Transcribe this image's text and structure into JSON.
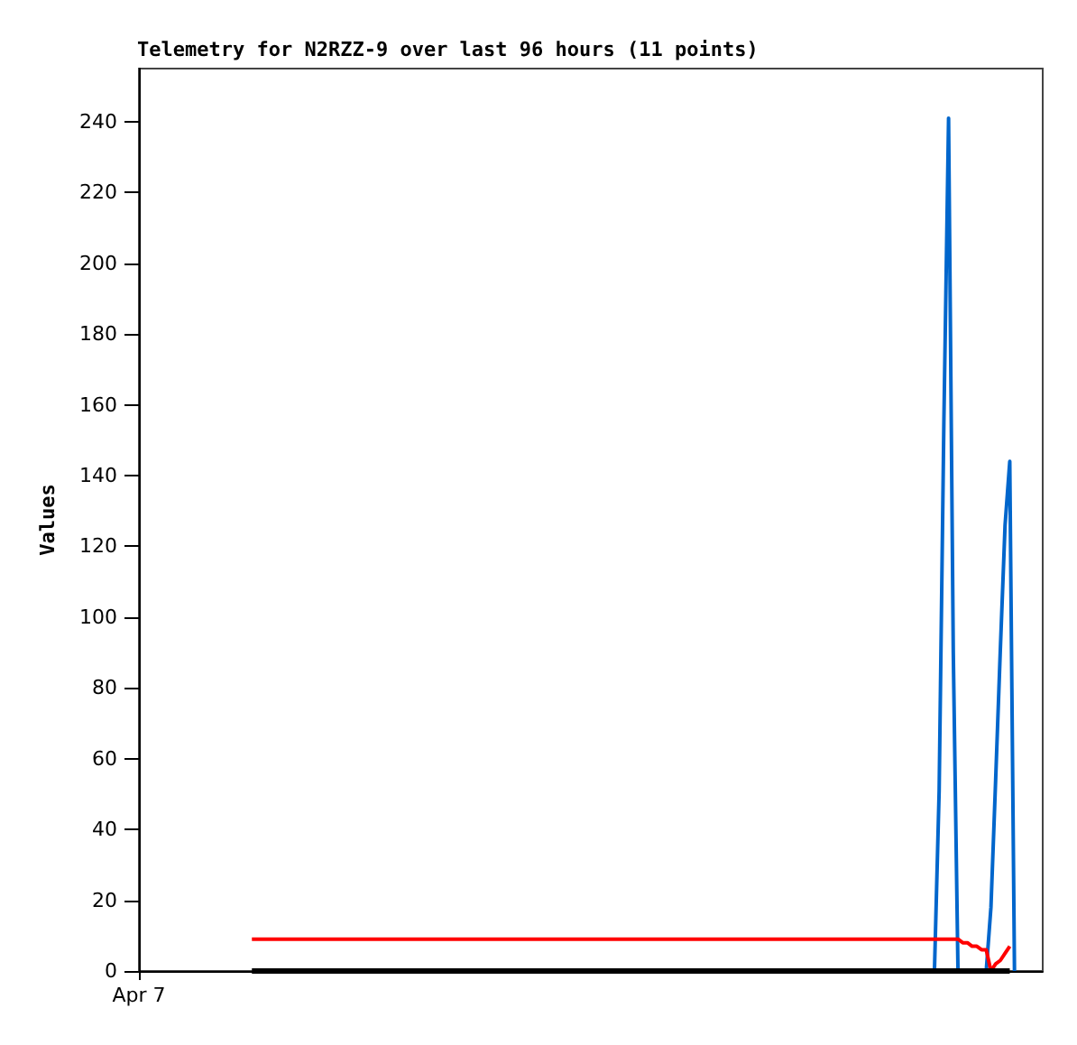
{
  "chart_data": {
    "type": "line",
    "title": "Telemetry for N2RZZ-9 over last 96 hours (11 points)",
    "ylabel": "Values",
    "categories": [
      "Apr 7",
      null,
      null,
      null,
      null,
      null,
      null,
      null,
      null,
      null,
      null,
      null,
      null,
      null,
      null,
      null,
      null,
      null,
      null,
      null,
      null,
      null,
      null,
      null,
      null,
      null,
      null,
      null,
      null,
      null,
      null,
      null,
      null,
      null,
      null,
      null,
      null,
      null,
      null,
      null,
      null,
      null,
      null,
      null,
      null,
      null,
      null,
      null,
      null,
      null,
      null,
      null,
      null,
      null,
      null,
      null,
      null,
      null,
      null,
      null,
      null,
      null,
      null,
      null,
      null,
      null,
      null,
      null,
      null,
      null,
      null,
      null,
      null,
      null,
      null,
      null,
      null,
      null,
      null,
      null,
      null,
      null,
      null,
      null,
      null,
      null,
      null,
      null,
      null,
      null,
      null,
      null,
      null,
      null,
      null,
      null,
      null,
      null,
      null,
      null,
      null,
      null,
      null,
      null,
      null,
      null,
      null,
      null,
      null,
      null,
      null,
      null,
      null,
      null,
      null,
      null,
      null,
      null,
      null,
      null,
      null,
      null,
      null,
      null,
      null,
      null,
      null,
      null,
      null,
      null,
      null,
      null,
      null,
      null,
      null,
      null,
      null,
      null,
      null,
      null,
      null,
      null,
      null,
      null,
      null,
      null,
      null,
      null,
      null,
      null,
      null,
      null,
      null,
      null,
      null,
      null,
      null,
      null,
      null,
      null,
      null,
      null,
      null,
      null,
      null,
      null,
      null,
      null,
      null,
      null,
      null,
      null,
      null,
      null,
      null,
      null,
      null,
      null,
      null,
      null,
      null,
      null,
      null,
      null,
      null,
      null,
      null,
      null,
      null,
      null,
      null,
      null,
      null
    ],
    "ylim": [
      0,
      255
    ],
    "yticks": [
      0,
      20,
      40,
      60,
      80,
      100,
      120,
      140,
      160,
      180,
      200,
      220,
      240
    ],
    "grid": false,
    "marker": "none",
    "line_style": "solid",
    "series": [
      {
        "color": "#000000",
        "values": [
          null,
          null,
          null,
          null,
          null,
          null,
          null,
          null,
          null,
          null,
          null,
          null,
          null,
          null,
          null,
          null,
          null,
          null,
          null,
          null,
          null,
          null,
          null,
          null,
          0,
          0,
          0,
          0,
          0,
          0,
          0,
          0,
          0,
          0,
          0,
          0,
          0,
          0,
          0,
          0,
          0,
          0,
          0,
          0,
          0,
          0,
          0,
          0,
          0,
          0,
          0,
          0,
          0,
          0,
          0,
          0,
          0,
          0,
          0,
          0,
          0,
          0,
          0,
          0,
          0,
          0,
          0,
          0,
          0,
          0,
          0,
          0,
          0,
          0,
          0,
          0,
          0,
          0,
          0,
          0,
          0,
          0,
          0,
          0,
          0,
          0,
          0,
          0,
          0,
          0,
          0,
          0,
          0,
          0,
          0,
          0,
          0,
          0,
          0,
          0,
          0,
          0,
          0,
          0,
          0,
          0,
          0,
          0,
          0,
          0,
          0,
          0,
          0,
          0,
          0,
          0,
          0,
          0,
          0,
          0,
          0,
          0,
          0,
          0,
          0,
          0,
          0,
          0,
          0,
          0,
          0,
          0,
          0,
          0,
          0,
          0,
          0,
          0,
          0,
          0,
          0,
          0,
          0,
          0,
          0,
          0,
          0,
          0,
          0,
          0,
          0,
          0,
          0,
          0,
          0,
          0,
          0,
          0,
          0,
          0,
          0,
          0,
          0,
          0,
          0,
          0,
          0,
          0,
          0,
          0,
          0,
          0,
          0,
          0,
          0,
          0,
          0,
          0,
          0,
          0,
          0,
          0,
          0,
          0,
          0,
          0,
          null,
          null,
          null,
          null,
          null,
          null,
          null
        ]
      },
      {
        "color": "#ff0000",
        "values": [
          null,
          null,
          null,
          null,
          null,
          null,
          null,
          null,
          null,
          null,
          null,
          null,
          null,
          null,
          null,
          null,
          null,
          null,
          null,
          null,
          null,
          null,
          null,
          null,
          9,
          9,
          9,
          9,
          9,
          9,
          9,
          9,
          9,
          9,
          9,
          9,
          9,
          9,
          9,
          9,
          9,
          9,
          9,
          9,
          9,
          9,
          9,
          9,
          9,
          9,
          9,
          9,
          9,
          9,
          9,
          9,
          9,
          9,
          9,
          9,
          9,
          9,
          9,
          9,
          9,
          9,
          9,
          9,
          9,
          9,
          9,
          9,
          9,
          9,
          9,
          9,
          9,
          9,
          9,
          9,
          9,
          9,
          9,
          9,
          9,
          9,
          9,
          9,
          9,
          9,
          9,
          9,
          9,
          9,
          9,
          9,
          9,
          9,
          9,
          9,
          9,
          9,
          9,
          9,
          9,
          9,
          9,
          9,
          9,
          9,
          9,
          9,
          9,
          9,
          9,
          9,
          9,
          9,
          9,
          9,
          9,
          9,
          9,
          9,
          9,
          9,
          9,
          9,
          9,
          9,
          9,
          9,
          9,
          9,
          9,
          9,
          9,
          9,
          9,
          9,
          9,
          9,
          9,
          9,
          9,
          9,
          9,
          9,
          9,
          9,
          9,
          9,
          9,
          9,
          9,
          9,
          9,
          9,
          9,
          9,
          9,
          9,
          9,
          9,
          9,
          9,
          9,
          9,
          9,
          9,
          9,
          9,
          9,
          9,
          9,
          8,
          8,
          7,
          7,
          6,
          6,
          0,
          2,
          3,
          5,
          7,
          null,
          null,
          null,
          null,
          null,
          null,
          null
        ]
      },
      {
        "color": "#0066cc",
        "values": [
          null,
          null,
          null,
          null,
          null,
          null,
          null,
          null,
          null,
          null,
          null,
          null,
          null,
          null,
          null,
          null,
          null,
          null,
          null,
          null,
          null,
          null,
          null,
          null,
          null,
          null,
          null,
          null,
          null,
          null,
          null,
          null,
          null,
          null,
          null,
          null,
          null,
          null,
          null,
          null,
          null,
          null,
          null,
          null,
          null,
          null,
          null,
          null,
          null,
          null,
          null,
          null,
          null,
          null,
          null,
          null,
          null,
          null,
          null,
          null,
          null,
          null,
          null,
          null,
          null,
          null,
          null,
          null,
          null,
          null,
          null,
          null,
          null,
          null,
          null,
          null,
          null,
          null,
          null,
          null,
          null,
          null,
          null,
          null,
          null,
          null,
          null,
          null,
          null,
          null,
          null,
          null,
          null,
          null,
          null,
          null,
          null,
          null,
          null,
          null,
          null,
          null,
          null,
          null,
          null,
          null,
          null,
          null,
          null,
          null,
          null,
          null,
          null,
          null,
          null,
          null,
          null,
          null,
          null,
          null,
          null,
          null,
          null,
          null,
          null,
          null,
          null,
          null,
          null,
          null,
          null,
          null,
          null,
          null,
          null,
          null,
          null,
          null,
          null,
          null,
          null,
          null,
          null,
          null,
          null,
          null,
          null,
          null,
          null,
          null,
          null,
          null,
          null,
          null,
          null,
          null,
          null,
          null,
          null,
          null,
          null,
          null,
          null,
          null,
          null,
          null,
          null,
          null,
          null,
          0,
          51,
          155,
          241,
          90,
          0,
          0,
          0,
          0,
          0,
          0,
          0,
          18,
          54,
          91,
          126,
          144,
          0,
          null,
          null,
          null,
          null,
          null,
          null
        ]
      }
    ]
  }
}
